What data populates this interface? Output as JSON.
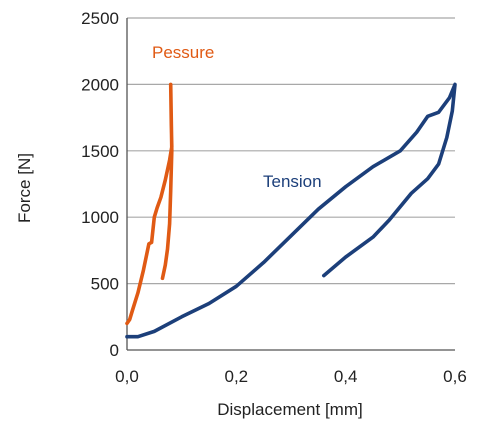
{
  "chart_data": {
    "type": "line",
    "title": "",
    "xlabel": "Displacement [mm]",
    "ylabel": "Force [N]",
    "xlim": [
      0,
      0.6
    ],
    "ylim": [
      0,
      2500
    ],
    "x_ticks": [
      0,
      0.2,
      0.4,
      0.6
    ],
    "x_tick_labels": [
      "0,0",
      "0,2",
      "0,4",
      "0,6"
    ],
    "y_ticks": [
      0,
      500,
      1000,
      1500,
      2000,
      2500
    ],
    "y_tick_labels": [
      "0",
      "500",
      "1000",
      "1500",
      "2000",
      "2500"
    ],
    "grid": "horizontal",
    "series": [
      {
        "name": "Pessure",
        "color": "#e05a14",
        "points": [
          [
            0.0,
            200
          ],
          [
            0.005,
            230
          ],
          [
            0.01,
            300
          ],
          [
            0.02,
            430
          ],
          [
            0.03,
            600
          ],
          [
            0.04,
            800
          ],
          [
            0.045,
            810
          ],
          [
            0.05,
            1000
          ],
          [
            0.055,
            1070
          ],
          [
            0.062,
            1150
          ],
          [
            0.07,
            1280
          ],
          [
            0.078,
            1430
          ],
          [
            0.082,
            1530
          ],
          [
            0.081,
            1700
          ],
          [
            0.08,
            2000
          ],
          [
            0.082,
            1500
          ],
          [
            0.08,
            1200
          ],
          [
            0.078,
            950
          ],
          [
            0.074,
            760
          ],
          [
            0.07,
            640
          ],
          [
            0.065,
            540
          ]
        ]
      },
      {
        "name": "Tension",
        "color": "#1c3f7a",
        "points": [
          [
            0.0,
            100
          ],
          [
            0.02,
            100
          ],
          [
            0.05,
            140
          ],
          [
            0.1,
            250
          ],
          [
            0.15,
            350
          ],
          [
            0.2,
            480
          ],
          [
            0.25,
            660
          ],
          [
            0.3,
            860
          ],
          [
            0.35,
            1060
          ],
          [
            0.4,
            1230
          ],
          [
            0.45,
            1380
          ],
          [
            0.5,
            1500
          ],
          [
            0.53,
            1640
          ],
          [
            0.55,
            1760
          ],
          [
            0.57,
            1790
          ],
          [
            0.59,
            1900
          ],
          [
            0.6,
            2000
          ],
          [
            0.595,
            1800
          ],
          [
            0.585,
            1600
          ],
          [
            0.57,
            1400
          ],
          [
            0.55,
            1290
          ],
          [
            0.52,
            1180
          ],
          [
            0.48,
            980
          ],
          [
            0.45,
            850
          ],
          [
            0.4,
            700
          ],
          [
            0.36,
            560
          ]
        ]
      }
    ]
  }
}
